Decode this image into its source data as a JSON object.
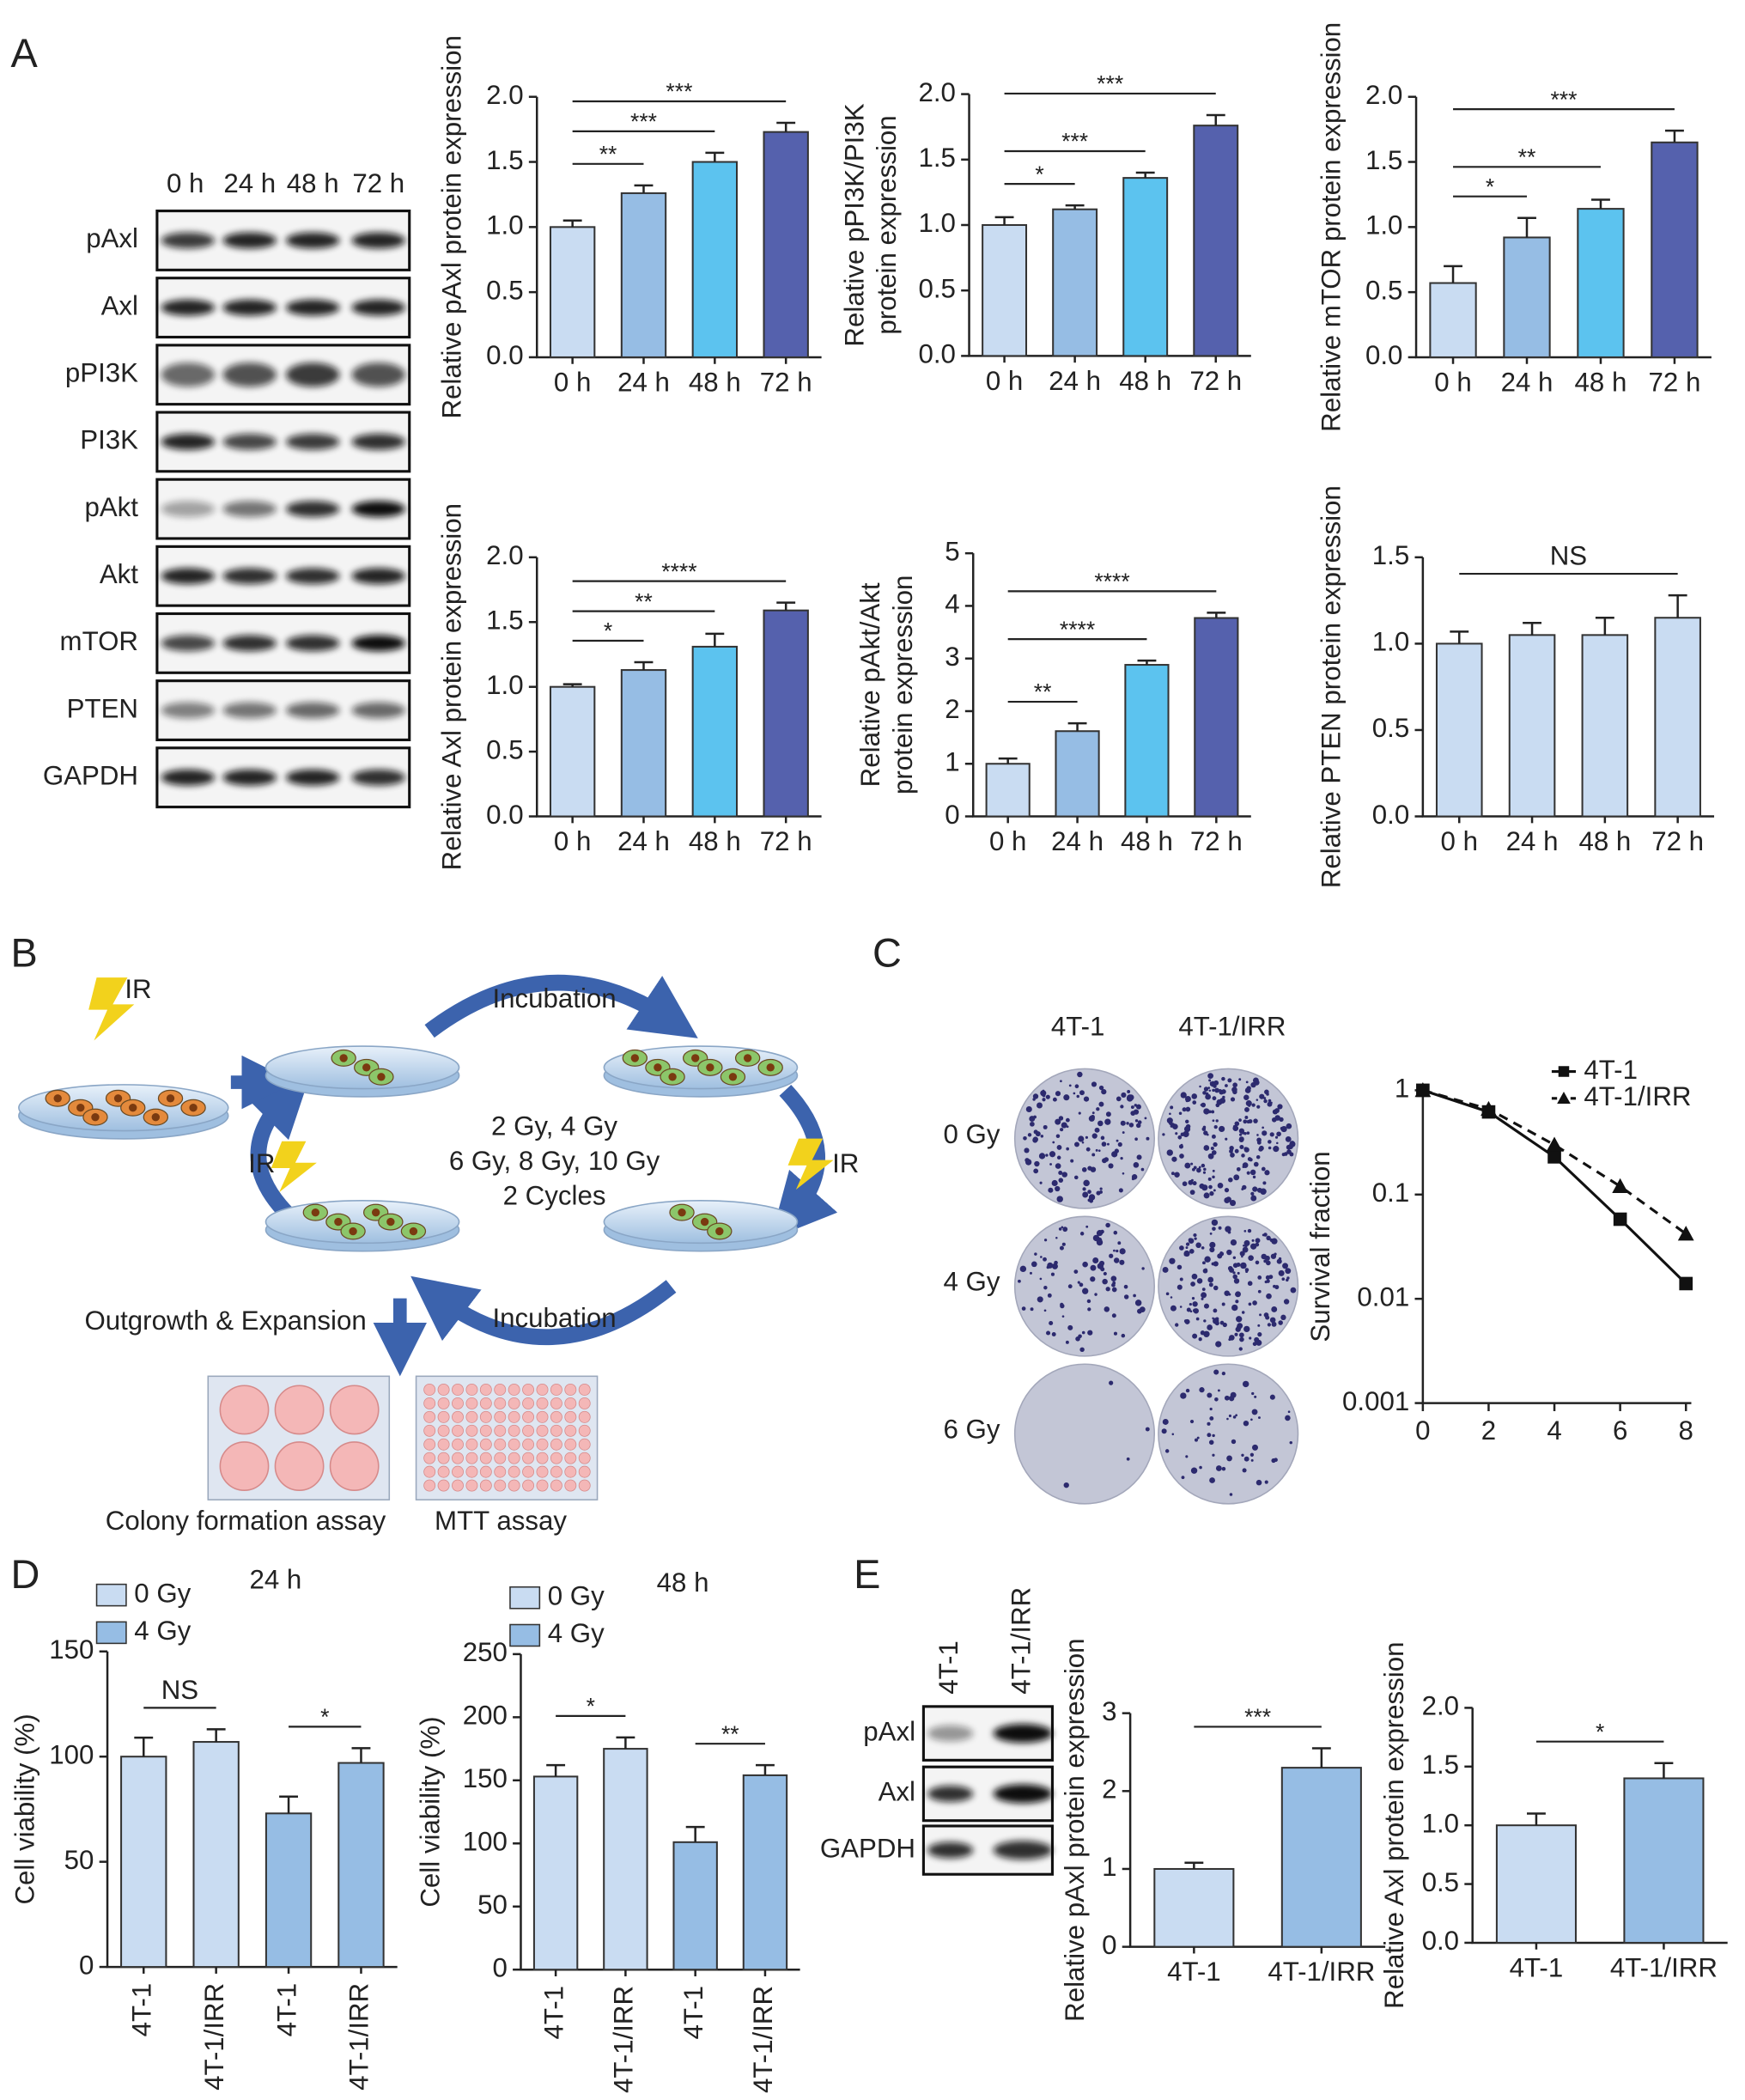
{
  "panel_labels": [
    "A",
    "B",
    "C",
    "D",
    "E"
  ],
  "blot_a": {
    "lanes": [
      "0 h",
      "24 h",
      "48 h",
      "72 h"
    ],
    "rows": [
      "pAxl",
      "Axl",
      "pPI3K",
      "PI3K",
      "pAkt",
      "Akt",
      "mTOR",
      "PTEN",
      "GAPDH"
    ]
  },
  "diagram_b": {
    "ir": [
      "IR",
      "IR",
      "IR"
    ],
    "incubation": [
      "Incubation",
      "Incubation"
    ],
    "doses": [
      "2 Gy, 4 Gy",
      "6 Gy, 8 Gy, 10 Gy"
    ],
    "cycles": "2 Cycles",
    "outgrowth": "Outgrowth & Expansion",
    "assays": [
      "Colony formation assay",
      "MTT assay"
    ]
  },
  "colony_c": {
    "columns": [
      "4T-1",
      "4T-1/IRR"
    ],
    "rows": [
      "0 Gy",
      "4 Gy",
      "6 Gy"
    ]
  },
  "blot_e": {
    "lanes": [
      "4T-1",
      "4T-1/IRR"
    ],
    "rows": [
      "pAxl",
      "Axl",
      "GAPDH"
    ]
  },
  "chart_data": [
    {
      "type": "bar",
      "y_label": [
        "Relative pAxl protein expression"
      ],
      "categories": [
        "0 h",
        "24 h",
        "48 h",
        "72 h"
      ],
      "values": [
        1.0,
        1.26,
        1.5,
        1.73
      ],
      "errors": [
        0.05,
        0.06,
        0.07,
        0.07
      ],
      "colors": [
        "#c9dcf2",
        "#96bde4",
        "#5cc3ef",
        "#5561ad"
      ],
      "ylim": [
        0,
        2
      ],
      "yticks": [
        {
          "value": 0,
          "label": "0.0"
        },
        0.5,
        {
          "value": 1,
          "label": "1.0"
        },
        1.5,
        {
          "value": 2,
          "label": "2.0"
        }
      ],
      "annotations": [
        {
          "label": "**",
          "from": 0,
          "to": 1
        },
        {
          "label": "***",
          "from": 0,
          "to": 2
        },
        {
          "label": "***",
          "from": 0,
          "to": 3
        }
      ]
    },
    {
      "type": "bar",
      "y_label": [
        "Relative pPI3K/PI3K",
        "protein expression"
      ],
      "categories": [
        "0 h",
        "24 h",
        "48 h",
        "72 h"
      ],
      "values": [
        1.0,
        1.12,
        1.36,
        1.76
      ],
      "errors": [
        0.06,
        0.03,
        0.04,
        0.08
      ],
      "colors": [
        "#c9dcf2",
        "#96bde4",
        "#5cc3ef",
        "#5561ad"
      ],
      "ylim": [
        0,
        2
      ],
      "yticks": [
        {
          "value": 0,
          "label": "0.0"
        },
        0.5,
        {
          "value": 1,
          "label": "1.0"
        },
        1.5,
        {
          "value": 2,
          "label": "2.0"
        }
      ],
      "annotations": [
        {
          "label": "*",
          "from": 0,
          "to": 1
        },
        {
          "label": "***",
          "from": 0,
          "to": 2
        },
        {
          "label": "***",
          "from": 0,
          "to": 3
        }
      ]
    },
    {
      "type": "bar",
      "y_label": [
        "Relative mTOR protein expression"
      ],
      "categories": [
        "0 h",
        "24 h",
        "48 h",
        "72 h"
      ],
      "values": [
        0.57,
        0.92,
        1.14,
        1.65
      ],
      "errors": [
        0.13,
        0.15,
        0.07,
        0.09
      ],
      "colors": [
        "#c9dcf2",
        "#96bde4",
        "#5cc3ef",
        "#5561ad"
      ],
      "ylim": [
        0,
        2
      ],
      "yticks": [
        {
          "value": 0,
          "label": "0.0"
        },
        0.5,
        {
          "value": 1,
          "label": "1.0"
        },
        1.5,
        {
          "value": 2,
          "label": "2.0"
        }
      ],
      "annotations": [
        {
          "label": "*",
          "from": 0,
          "to": 1
        },
        {
          "label": "**",
          "from": 0,
          "to": 2
        },
        {
          "label": "***",
          "from": 0,
          "to": 3
        }
      ]
    },
    {
      "type": "bar",
      "y_label": [
        "Relative Axl protein expression"
      ],
      "categories": [
        "0 h",
        "24 h",
        "48 h",
        "72 h"
      ],
      "values": [
        1.0,
        1.13,
        1.31,
        1.59
      ],
      "errors": [
        0.02,
        0.06,
        0.1,
        0.06
      ],
      "colors": [
        "#c9dcf2",
        "#96bde4",
        "#5cc3ef",
        "#5561ad"
      ],
      "ylim": [
        0,
        2
      ],
      "yticks": [
        {
          "value": 0,
          "label": "0.0"
        },
        0.5,
        {
          "value": 1,
          "label": "1.0"
        },
        1.5,
        {
          "value": 2,
          "label": "2.0"
        }
      ],
      "annotations": [
        {
          "label": "*",
          "from": 0,
          "to": 1
        },
        {
          "label": "**",
          "from": 0,
          "to": 2
        },
        {
          "label": "****",
          "from": 0,
          "to": 3
        }
      ]
    },
    {
      "type": "bar",
      "y_label": [
        "Relative pAkt/Akt",
        "protein expression"
      ],
      "categories": [
        "0 h",
        "24 h",
        "48 h",
        "72 h"
      ],
      "values": [
        1.0,
        1.62,
        2.88,
        3.77
      ],
      "errors": [
        0.1,
        0.15,
        0.08,
        0.1
      ],
      "colors": [
        "#c9dcf2",
        "#96bde4",
        "#5cc3ef",
        "#5561ad"
      ],
      "ylim": [
        0,
        5
      ],
      "yticks": [
        0,
        1,
        2,
        3,
        4,
        5
      ],
      "annotations": [
        {
          "label": "**",
          "from": 0,
          "to": 1
        },
        {
          "label": "****",
          "from": 0,
          "to": 2
        },
        {
          "label": "****",
          "from": 0,
          "to": 3
        }
      ]
    },
    {
      "type": "bar",
      "y_label": [
        "Relative PTEN protein expression"
      ],
      "categories": [
        "0 h",
        "24 h",
        "48 h",
        "72 h"
      ],
      "values": [
        1.0,
        1.05,
        1.05,
        1.15
      ],
      "errors": [
        0.07,
        0.07,
        0.1,
        0.13
      ],
      "color": "#c9dcf2",
      "ylim": [
        0,
        1.5
      ],
      "yticks": [
        {
          "value": 0,
          "label": "0.0"
        },
        0.5,
        {
          "value": 1,
          "label": "1.0"
        },
        1.5
      ],
      "annotations": [
        {
          "label": "NS",
          "from": 0,
          "to": 3
        }
      ]
    },
    {
      "type": "line",
      "y_label": [
        "Survival fraction"
      ],
      "log_y": true,
      "x": [
        0,
        2,
        4,
        6,
        8
      ],
      "xlim": [
        0,
        8
      ],
      "xticks": [
        0,
        2,
        4,
        6,
        8
      ],
      "ylim": [
        0.001,
        1
      ],
      "yticks": [
        0.001,
        0.01,
        0.1,
        1
      ],
      "series": [
        {
          "name": "4T-1",
          "color": "#111111",
          "marker": "square",
          "dashed": false,
          "values": [
            1,
            0.62,
            0.23,
            0.058,
            0.014
          ]
        },
        {
          "name": "4T-1/IRR",
          "color": "#111111",
          "marker": "triangle",
          "dashed": true,
          "values": [
            1,
            0.66,
            0.3,
            0.12,
            0.042
          ]
        }
      ]
    },
    {
      "type": "bar",
      "title": "24 h",
      "y_label": [
        "Cell viability (%)"
      ],
      "categories": [
        "4T-1",
        "4T-1/IRR",
        "4T-1",
        "4T-1/IRR"
      ],
      "series": [
        {
          "name": "0 Gy",
          "color": "#c9dcf2",
          "values": [
            100,
            107,
            null,
            null
          ],
          "errors": [
            9,
            6,
            null,
            null
          ]
        },
        {
          "name": "4 Gy",
          "color": "#96bde4",
          "values": [
            null,
            null,
            73,
            97
          ],
          "errors": [
            null,
            null,
            8,
            7
          ]
        }
      ],
      "ylim": [
        0,
        150
      ],
      "yticks": [
        0,
        50,
        100,
        150
      ],
      "annotations": [
        {
          "label": "NS",
          "from": 0,
          "to": 1
        },
        {
          "label": "*",
          "from": 2,
          "to": 3
        }
      ]
    },
    {
      "type": "bar",
      "title": "48 h",
      "y_label": [
        "Cell viability (%)"
      ],
      "categories": [
        "4T-1",
        "4T-1/IRR",
        "4T-1",
        "4T-1/IRR"
      ],
      "series": [
        {
          "name": "0 Gy",
          "color": "#c9dcf2",
          "values": [
            153,
            175,
            null,
            null
          ],
          "errors": [
            9,
            9,
            null,
            null
          ]
        },
        {
          "name": "4 Gy",
          "color": "#96bde4",
          "values": [
            null,
            null,
            101,
            154
          ],
          "errors": [
            null,
            null,
            12,
            8
          ]
        }
      ],
      "ylim": [
        0,
        250
      ],
      "yticks": [
        0,
        50,
        100,
        150,
        200,
        250
      ],
      "annotations": [
        {
          "label": "*",
          "from": 0,
          "to": 1
        },
        {
          "label": "**",
          "from": 2,
          "to": 3
        }
      ]
    },
    {
      "type": "bar",
      "y_label": [
        "Relative pAxl protein expression"
      ],
      "categories": [
        "4T-1",
        "4T-1/IRR"
      ],
      "values": [
        1.0,
        2.3
      ],
      "errors": [
        0.08,
        0.25
      ],
      "colors": [
        "#c9dcf2",
        "#96bde4"
      ],
      "ylim": [
        0,
        3
      ],
      "yticks": [
        0,
        1,
        2,
        3
      ],
      "annotations": [
        {
          "label": "***",
          "from": 0,
          "to": 1
        }
      ]
    },
    {
      "type": "bar",
      "y_label": [
        "Relative Axl protein expression"
      ],
      "categories": [
        "4T-1",
        "4T-1/IRR"
      ],
      "values": [
        1.0,
        1.4
      ],
      "errors": [
        0.1,
        0.13
      ],
      "colors": [
        "#c9dcf2",
        "#96bde4"
      ],
      "ylim": [
        0,
        2
      ],
      "yticks": [
        {
          "value": 0,
          "label": "0.0"
        },
        0.5,
        {
          "value": 1,
          "label": "1.0"
        },
        1.5,
        {
          "value": 2,
          "label": "2.0"
        }
      ],
      "annotations": [
        {
          "label": "*",
          "from": 0,
          "to": 1
        }
      ]
    }
  ]
}
